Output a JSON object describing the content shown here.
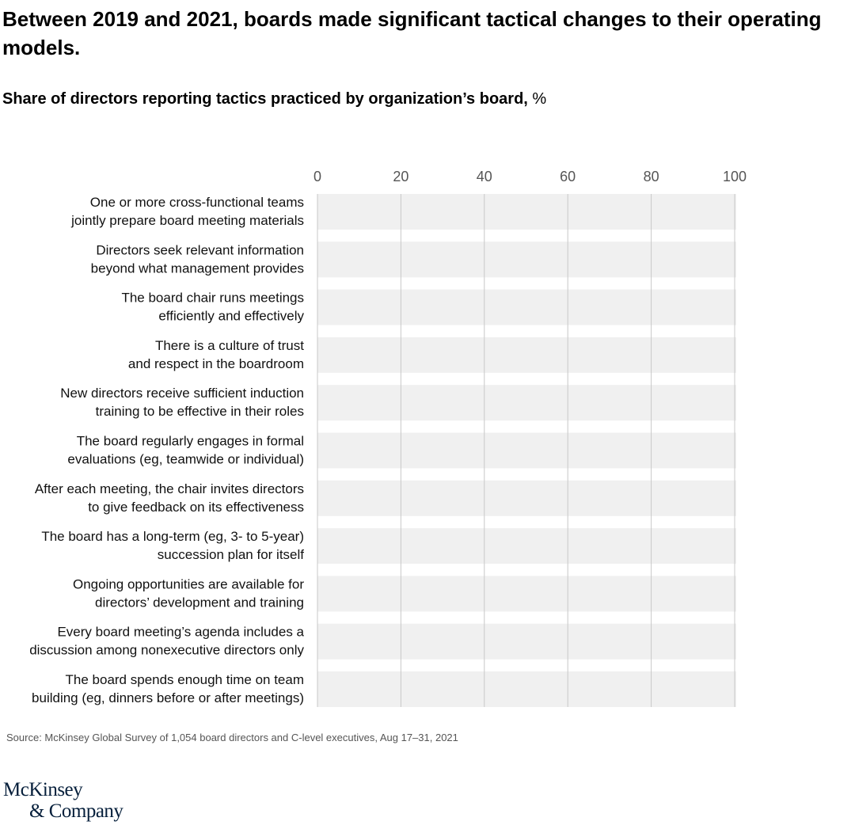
{
  "title": "Between 2019 and 2021, boards made significant tactical changes to their operating models.",
  "subtitle": "Share of directors reporting tactics practiced by organization’s board,",
  "subtitle_unit": "%",
  "source": "Source: McKinsey Global Survey of 1,054 board directors and C-level executives, Aug 17–31, 2021",
  "logo": {
    "line1": "McKinsey",
    "line2": "& Company"
  },
  "colors": {
    "track": "#f0f0f0",
    "grid": "#c8c8c8",
    "tick_text": "#555555"
  },
  "chart_data": {
    "type": "bar",
    "orientation": "horizontal",
    "xlim": [
      0,
      100
    ],
    "xticks": [
      "0",
      "20",
      "40",
      "60",
      "80",
      "100"
    ],
    "grid": true,
    "categories": [
      [
        "One or more cross-functional teams",
        "jointly prepare board meeting materials"
      ],
      [
        "Directors seek relevant information",
        "beyond what management provides"
      ],
      [
        "The board chair runs meetings",
        "efficiently and effectively"
      ],
      [
        "There is a culture of trust",
        "and respect in the boardroom"
      ],
      [
        "New directors receive sufficient induction",
        "training to be effective in their roles"
      ],
      [
        "The board regularly engages in formal",
        "evaluations (eg, teamwide or individual)"
      ],
      [
        "After each meeting, the chair invites directors",
        "to give feedback on its effectiveness"
      ],
      [
        "The board has a long-term (eg, 3- to 5-year)",
        "succession plan for itself"
      ],
      [
        "Ongoing opportunities are available for",
        "directors’ development and training"
      ],
      [
        "Every board meeting’s agenda includes a",
        "discussion among nonexecutive directors only"
      ],
      [
        "The board spends enough time on team",
        "building (eg, dinners before or after meetings)"
      ]
    ]
  }
}
